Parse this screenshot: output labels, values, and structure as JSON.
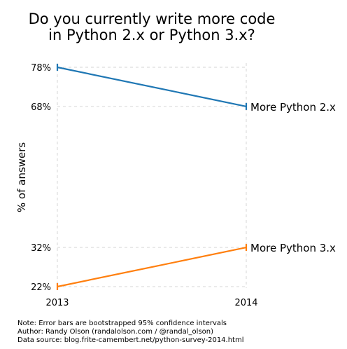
{
  "chart_data": {
    "type": "line",
    "title": [
      "Do you currently write more code",
      "in Python 2.x or Python 3.x?"
    ],
    "ylabel": "% of answers",
    "x": [
      "2013",
      "2014"
    ],
    "ytick_labels": [
      "78%",
      "68%",
      "32%",
      "22%"
    ],
    "ytick_values": [
      78,
      68,
      32,
      22
    ],
    "ylim": [
      22,
      78
    ],
    "grid": true,
    "series": [
      {
        "name": "More Python 2.x",
        "values": [
          78,
          68
        ],
        "color": "#1f77b4"
      },
      {
        "name": "More Python 3.x",
        "values": [
          22,
          32
        ],
        "color": "#ff7f0e"
      }
    ],
    "error_bars": true
  },
  "notes": [
    "Note: Error bars are bootstrapped 95% confidence intervals",
    "Author: Randy Olson (randalolson.com / @randal_olson)",
    "Data source: blog.frite-camembert.net/python-survey-2014.html"
  ]
}
